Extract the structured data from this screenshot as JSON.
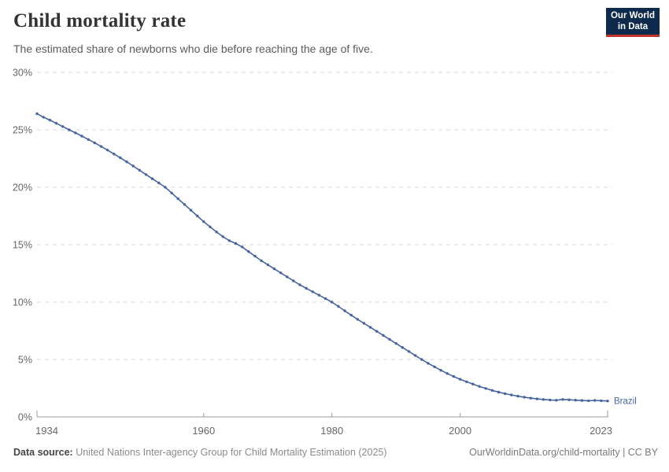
{
  "header": {
    "title": "Child mortality rate",
    "subtitle": "The estimated share of newborns who die before reaching the age of five.",
    "logo": {
      "line1": "Our World",
      "line2": "in Data",
      "bg_color": "#0e2a4d",
      "accent_color": "#c0342b"
    }
  },
  "chart_data": {
    "type": "line",
    "title": "Child mortality rate",
    "entity_label": "Brazil",
    "line_color": "#4664a0",
    "grid": "horizontal-dashed",
    "xlim": [
      1934,
      2023
    ],
    "ylim": [
      0,
      30
    ],
    "x_ticks": [
      1934,
      1960,
      1980,
      2000,
      2023
    ],
    "y_ticks": [
      0,
      5,
      10,
      15,
      20,
      25,
      30
    ],
    "y_tick_suffix": "%",
    "series": [
      {
        "name": "Brazil",
        "years": [
          1934,
          1935,
          1936,
          1937,
          1938,
          1939,
          1940,
          1941,
          1942,
          1943,
          1944,
          1945,
          1946,
          1947,
          1948,
          1949,
          1950,
          1951,
          1952,
          1953,
          1954,
          1955,
          1956,
          1957,
          1958,
          1959,
          1960,
          1961,
          1962,
          1963,
          1964,
          1965,
          1966,
          1967,
          1968,
          1969,
          1970,
          1971,
          1972,
          1973,
          1974,
          1975,
          1976,
          1977,
          1978,
          1979,
          1980,
          1981,
          1982,
          1983,
          1984,
          1985,
          1986,
          1987,
          1988,
          1989,
          1990,
          1991,
          1992,
          1993,
          1994,
          1995,
          1996,
          1997,
          1998,
          1999,
          2000,
          2001,
          2002,
          2003,
          2004,
          2005,
          2006,
          2007,
          2008,
          2009,
          2010,
          2011,
          2012,
          2013,
          2014,
          2015,
          2016,
          2017,
          2018,
          2019,
          2020,
          2021,
          2022,
          2023
        ],
        "values": [
          26.4,
          26.1,
          25.85,
          25.57,
          25.29,
          25.0,
          24.73,
          24.45,
          24.16,
          23.86,
          23.55,
          23.23,
          22.9,
          22.56,
          22.21,
          21.85,
          21.48,
          21.1,
          20.74,
          20.37,
          20.0,
          19.5,
          19.0,
          18.5,
          18.0,
          17.5,
          17.0,
          16.55,
          16.1,
          15.7,
          15.35,
          15.1,
          14.8,
          14.4,
          14.0,
          13.6,
          13.25,
          12.9,
          12.55,
          12.2,
          11.85,
          11.5,
          11.2,
          10.9,
          10.6,
          10.3,
          10.0,
          9.62,
          9.24,
          8.86,
          8.5,
          8.15,
          7.8,
          7.45,
          7.1,
          6.75,
          6.4,
          6.05,
          5.7,
          5.35,
          5.0,
          4.67,
          4.36,
          4.06,
          3.78,
          3.52,
          3.28,
          3.06,
          2.86,
          2.66,
          2.48,
          2.31,
          2.16,
          2.03,
          1.91,
          1.81,
          1.72,
          1.64,
          1.57,
          1.52,
          1.48,
          1.45,
          1.52,
          1.49,
          1.46,
          1.43,
          1.41,
          1.44,
          1.41,
          1.39
        ]
      }
    ]
  },
  "footer": {
    "source_label": "Data source:",
    "source_text": " United Nations Inter-agency Group for Child Mortality Estimation (2025)",
    "credit": "OurWorldinData.org/child-mortality | CC BY"
  }
}
